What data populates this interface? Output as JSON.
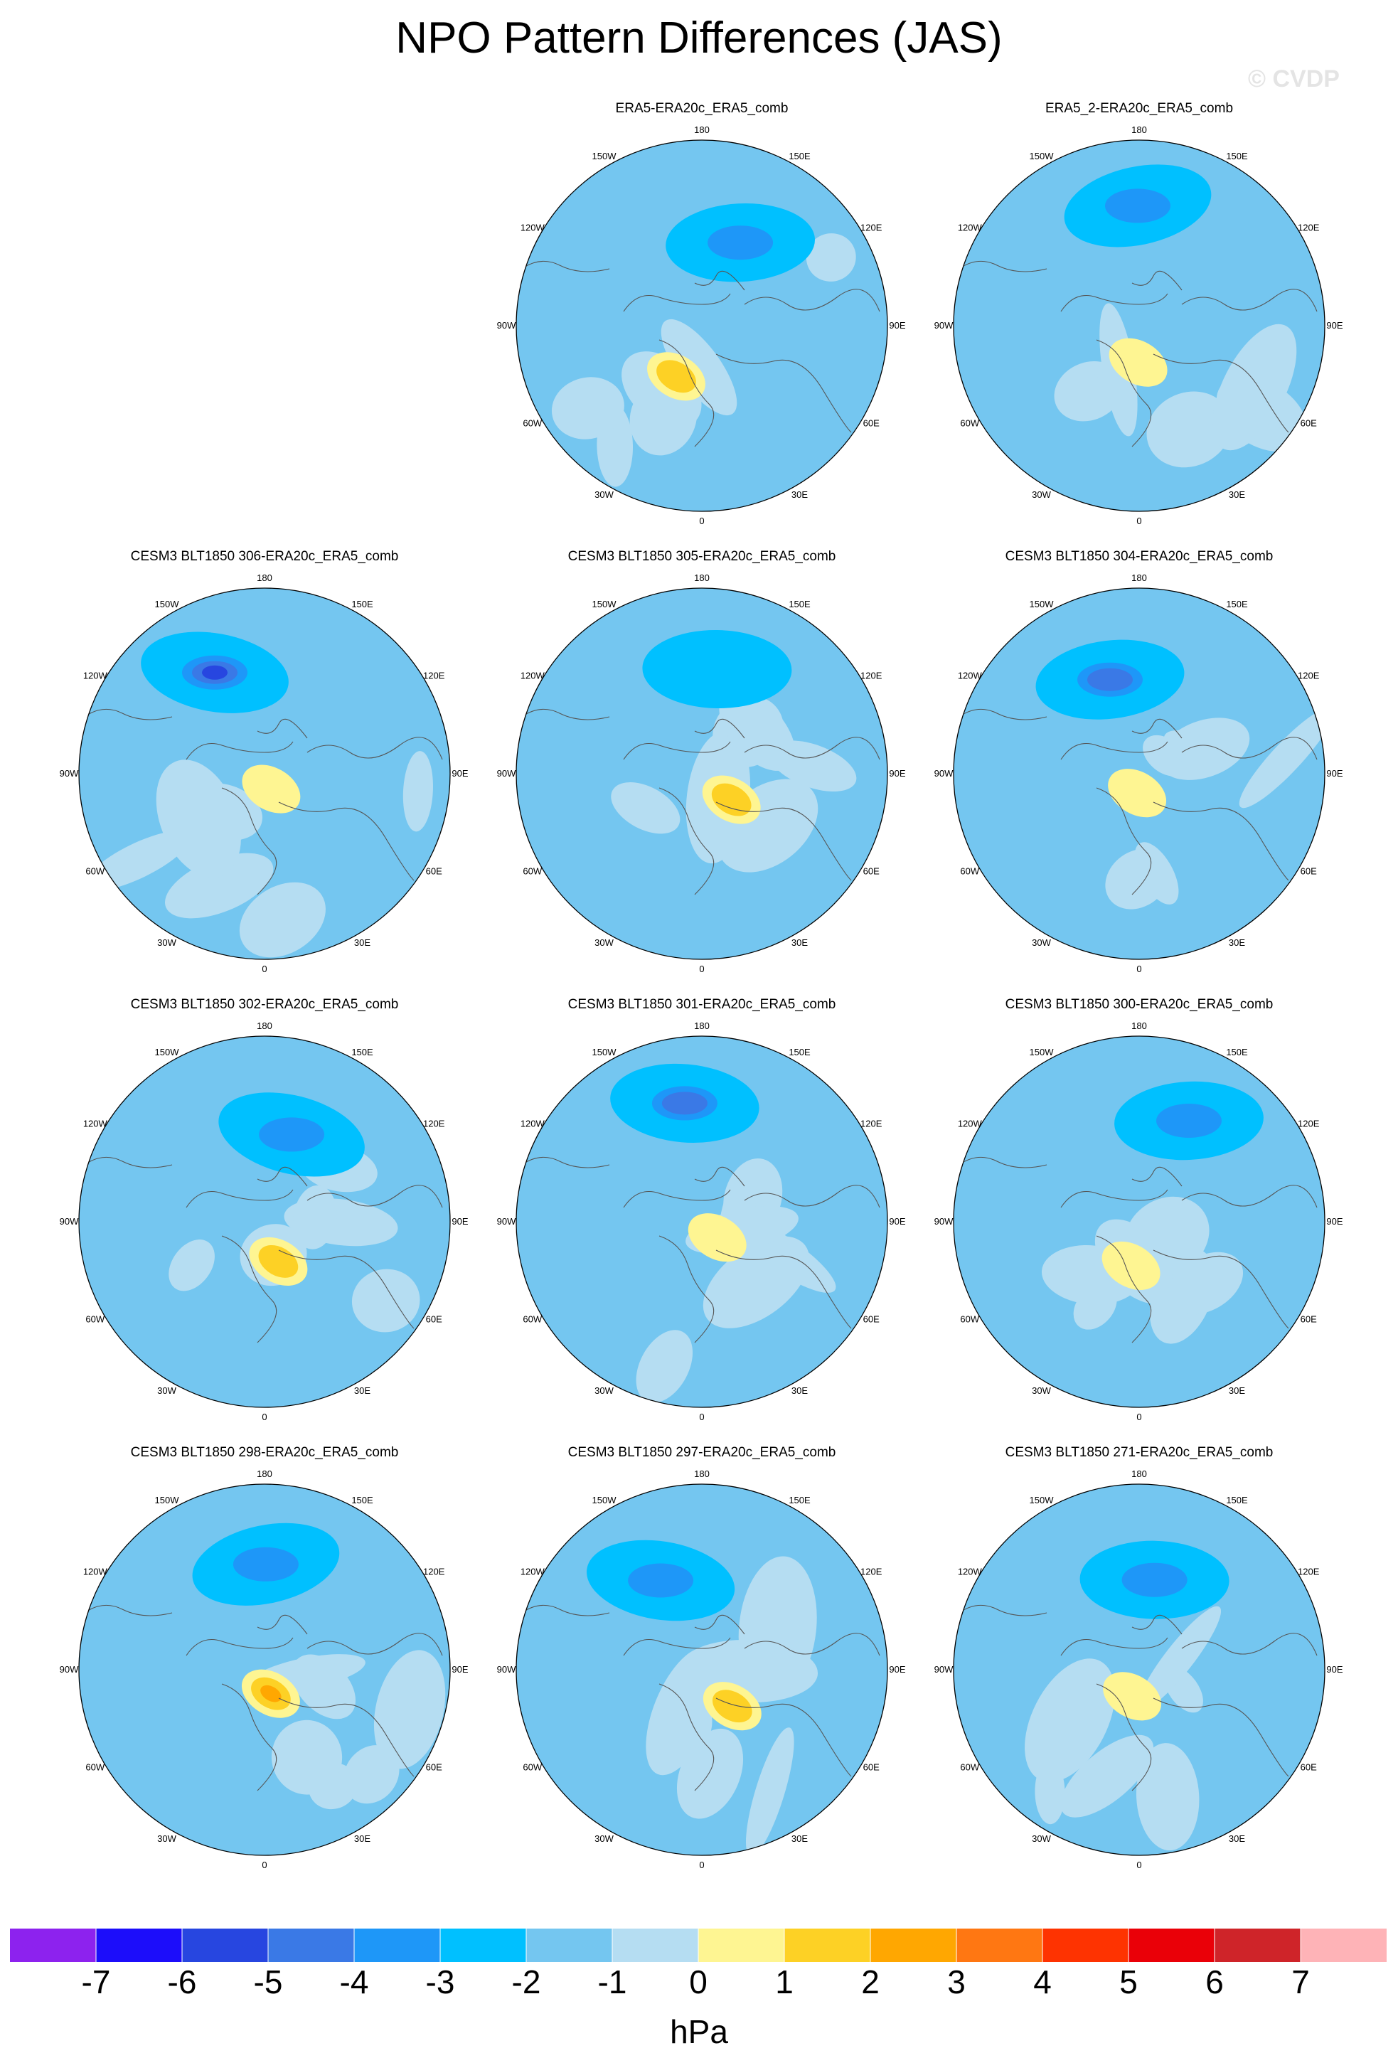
{
  "title": "NPO Pattern Differences (JAS)",
  "watermark": "© CVDP",
  "chart_data": {
    "type": "polar-contour-map-grid",
    "projection": "North polar stereographic, 0 at bottom, 180 at top",
    "variable": "NPO pattern difference (sea level pressure)",
    "season": "JAS",
    "units": "hPa",
    "longitude_labels": [
      "180",
      "150E",
      "120E",
      "90E",
      "60E",
      "30E",
      "0",
      "30W",
      "60W",
      "90W",
      "120W",
      "150W"
    ],
    "colorbar": {
      "levels": [
        "-7",
        "-6",
        "-5",
        "-4",
        "-3",
        "-2",
        "-1",
        "0",
        "1",
        "2",
        "3",
        "4",
        "5",
        "6",
        "7"
      ],
      "colors": [
        "#8d22ee",
        "#1c0dfa",
        "#2746e0",
        "#3a79e6",
        "#1e97f8",
        "#00c0ff",
        "#74c6f0",
        "#b5ddf2",
        "#fef592",
        "#fdd125",
        "#ffa701",
        "#ff7712",
        "#fe3301",
        "#ea0008",
        "#cf2429",
        "#feb3b7"
      ],
      "label": "hPa"
    },
    "panels": [
      {
        "title": "ERA5-ERA20c_ERA5_comb",
        "row": 0,
        "col": 1,
        "min_level": -3,
        "max_level": 2
      },
      {
        "title": "ERA5_2-ERA20c_ERA5_comb",
        "row": 0,
        "col": 2,
        "min_level": -3,
        "max_level": 1
      },
      {
        "title": "CESM3 BLT1850 306-ERA20c_ERA5_comb",
        "row": 1,
        "col": 0,
        "min_level": -5,
        "max_level": 1
      },
      {
        "title": "CESM3 BLT1850 305-ERA20c_ERA5_comb",
        "row": 1,
        "col": 1,
        "min_level": -2,
        "max_level": 2
      },
      {
        "title": "CESM3 BLT1850 304-ERA20c_ERA5_comb",
        "row": 1,
        "col": 2,
        "min_level": -4,
        "max_level": 1
      },
      {
        "title": "CESM3 BLT1850 302-ERA20c_ERA5_comb",
        "row": 2,
        "col": 0,
        "min_level": -3,
        "max_level": 2
      },
      {
        "title": "CESM3 BLT1850 301-ERA20c_ERA5_comb",
        "row": 2,
        "col": 1,
        "min_level": -4,
        "max_level": 1
      },
      {
        "title": "CESM3 BLT1850 300-ERA20c_ERA5_comb",
        "row": 2,
        "col": 2,
        "min_level": -3,
        "max_level": 1
      },
      {
        "title": "CESM3 BLT1850 298-ERA20c_ERA5_comb",
        "row": 3,
        "col": 0,
        "min_level": -3,
        "max_level": 3
      },
      {
        "title": "CESM3 BLT1850 297-ERA20c_ERA5_comb",
        "row": 3,
        "col": 1,
        "min_level": -3,
        "max_level": 2
      },
      {
        "title": "CESM3 BLT1850 271-ERA20c_ERA5_comb",
        "row": 3,
        "col": 2,
        "min_level": -3,
        "max_level": 1
      }
    ]
  }
}
